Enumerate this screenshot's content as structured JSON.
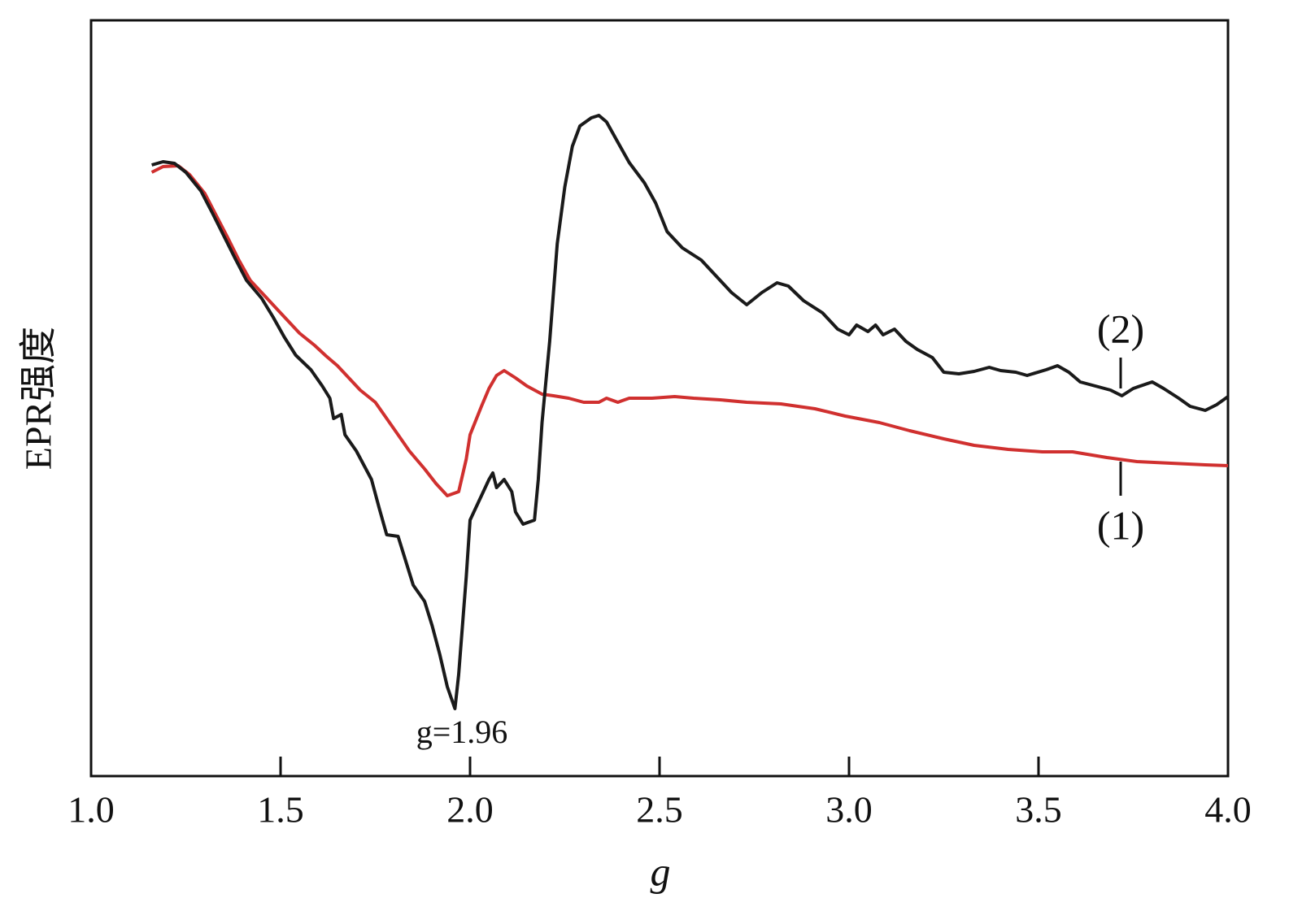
{
  "chart_data": {
    "type": "line",
    "x_label": "g",
    "y_label": "EPR强度",
    "annotation": "g=1.96",
    "xlim": [
      1.0,
      4.0
    ],
    "ylim": [
      0,
      930
    ],
    "xticks": [
      {
        "value": 1.0,
        "label": "1.0"
      },
      {
        "value": 1.5,
        "label": "1.5"
      },
      {
        "value": 2.0,
        "label": "2.0"
      },
      {
        "value": 2.5,
        "label": "2.5"
      },
      {
        "value": 3.0,
        "label": "3.0"
      },
      {
        "value": 3.5,
        "label": "3.5"
      },
      {
        "value": 4.0,
        "label": "4.0"
      }
    ],
    "series": [
      {
        "name": "(1)",
        "color": "#d0302f",
        "x": [
          1.16,
          1.19,
          1.23,
          1.26,
          1.3,
          1.33,
          1.36,
          1.39,
          1.42,
          1.46,
          1.49,
          1.52,
          1.55,
          1.59,
          1.62,
          1.65,
          1.68,
          1.71,
          1.75,
          1.78,
          1.81,
          1.84,
          1.88,
          1.91,
          1.94,
          1.97,
          1.99,
          2.0,
          2.03,
          2.05,
          2.07,
          2.09,
          2.12,
          2.15,
          2.19,
          2.22,
          2.26,
          2.3,
          2.34,
          2.36,
          2.39,
          2.42,
          2.48,
          2.54,
          2.59,
          2.66,
          2.73,
          2.82,
          2.91,
          2.99,
          3.08,
          3.16,
          3.25,
          3.33,
          3.42,
          3.51,
          3.59,
          3.68,
          3.76,
          3.85,
          3.94,
          4.0
        ],
        "values": [
          743,
          750,
          751,
          740,
          717,
          690,
          663,
          635,
          610,
          590,
          575,
          560,
          545,
          530,
          517,
          505,
          490,
          475,
          460,
          440,
          420,
          400,
          378,
          360,
          345,
          350,
          390,
          420,
          455,
          477,
          493,
          499,
          490,
          480,
          470,
          468,
          465,
          460,
          460,
          465,
          460,
          465,
          465,
          467,
          465,
          463,
          460,
          458,
          452,
          443,
          435,
          425,
          415,
          407,
          402,
          399,
          399,
          392,
          387,
          385,
          383,
          382
        ]
      },
      {
        "name": "(2)",
        "color": "#1a1a1a",
        "x": [
          1.16,
          1.19,
          1.22,
          1.25,
          1.29,
          1.32,
          1.35,
          1.38,
          1.41,
          1.45,
          1.48,
          1.51,
          1.54,
          1.58,
          1.61,
          1.63,
          1.64,
          1.66,
          1.67,
          1.7,
          1.74,
          1.76,
          1.78,
          1.81,
          1.83,
          1.85,
          1.88,
          1.9,
          1.92,
          1.94,
          1.96,
          1.97,
          1.99,
          2.0,
          2.03,
          2.05,
          2.06,
          2.07,
          2.09,
          2.11,
          2.12,
          2.14,
          2.17,
          2.18,
          2.19,
          2.21,
          2.23,
          2.25,
          2.27,
          2.29,
          2.32,
          2.34,
          2.36,
          2.39,
          2.42,
          2.46,
          2.49,
          2.52,
          2.56,
          2.61,
          2.65,
          2.69,
          2.73,
          2.77,
          2.81,
          2.84,
          2.88,
          2.93,
          2.97,
          3.0,
          3.02,
          3.05,
          3.07,
          3.09,
          3.12,
          3.15,
          3.18,
          3.22,
          3.25,
          3.29,
          3.33,
          3.37,
          3.4,
          3.44,
          3.47,
          3.52,
          3.55,
          3.58,
          3.61,
          3.65,
          3.69,
          3.72,
          3.75,
          3.8,
          3.83,
          3.87,
          3.9,
          3.94,
          3.97,
          4.0
        ],
        "values": [
          752,
          756,
          754,
          743,
          720,
          693,
          665,
          637,
          610,
          588,
          565,
          540,
          518,
          500,
          480,
          465,
          440,
          445,
          420,
          400,
          365,
          330,
          297,
          295,
          265,
          235,
          215,
          185,
          150,
          110,
          83,
          125,
          245,
          315,
          345,
          365,
          373,
          355,
          365,
          350,
          325,
          310,
          315,
          365,
          435,
          535,
          655,
          725,
          775,
          800,
          810,
          813,
          805,
          780,
          755,
          730,
          705,
          670,
          650,
          635,
          615,
          595,
          580,
          595,
          607,
          603,
          585,
          570,
          550,
          543,
          555,
          547,
          555,
          543,
          550,
          535,
          525,
          515,
          497,
          495,
          498,
          503,
          499,
          497,
          493,
          500,
          505,
          497,
          485,
          480,
          475,
          468,
          477,
          485,
          477,
          465,
          455,
          450,
          457,
          467
        ]
      }
    ]
  }
}
